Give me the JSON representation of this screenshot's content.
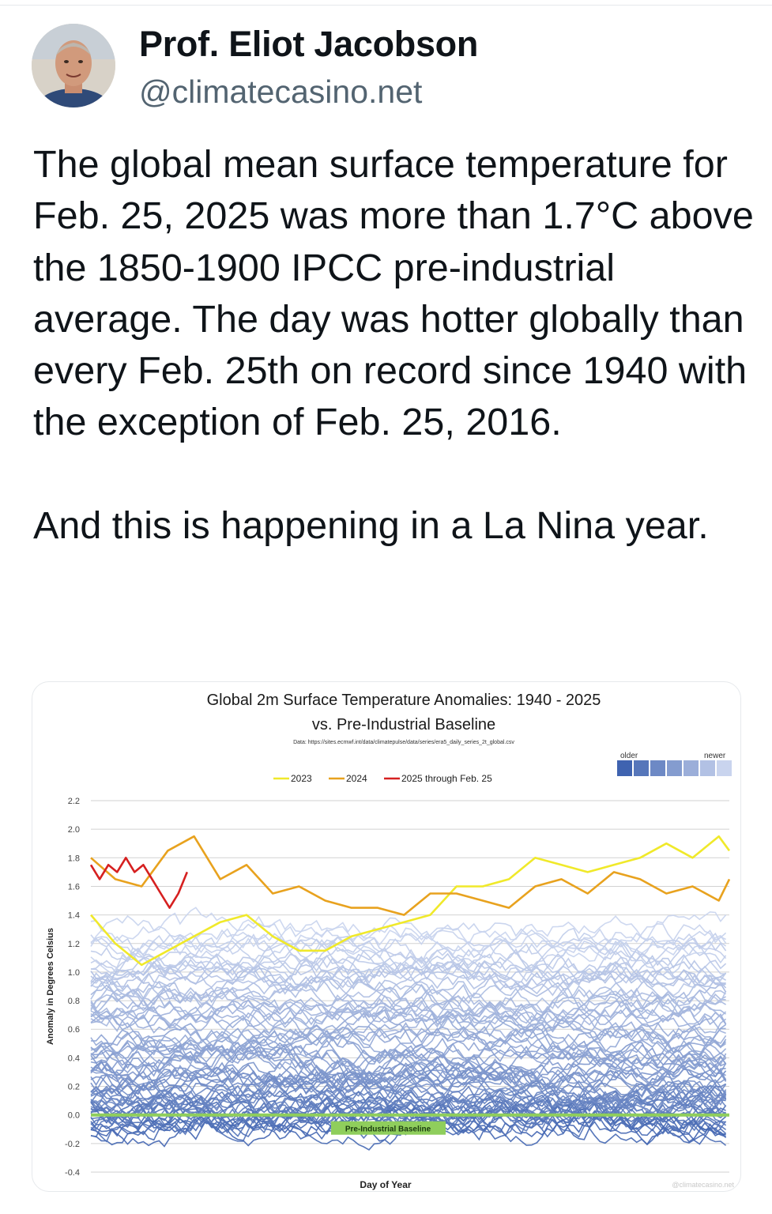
{
  "post": {
    "author_name": "Prof. Eliot Jacobson",
    "handle": "@climatecasino.net",
    "text": "The global mean surface temperature for Feb. 25, 2025 was more than 1.7°C above the 1850-1900 IPCC pre-industrial average. The day was hotter globally than every Feb. 25th on record since 1940 with the exception of Feb. 25, 2016.\n\nAnd this is happening in a La Nina year."
  },
  "colors": {
    "y2023": "#f0e92a",
    "y2024": "#e8a21e",
    "y2025": "#d62020",
    "older": "#3f63b0",
    "newer": "#c9d4ee",
    "baseline": "#8fce5c"
  },
  "chart_data": {
    "type": "line",
    "title": "Global 2m Surface Temperature Anomalies: 1940 - 2025",
    "subtitle": "vs. Pre-Industrial Baseline",
    "source": "Data: https://sites.ecmwf.int/data/climatepulse/data/series/era5_daily_series_2t_global.csv",
    "xlabel": "Day of Year",
    "ylabel": "Anomaly in Degrees Celsius",
    "ylim": [
      -0.4,
      2.2
    ],
    "xlim": [
      1,
      366
    ],
    "yticks": [
      "2.2",
      "2.0",
      "1.8",
      "1.6",
      "1.4",
      "1.2",
      "1.0",
      "0.8",
      "0.6",
      "0.4",
      "0.2",
      "0.0",
      "-0.2",
      "-0.4"
    ],
    "grid": true,
    "legend_placement": "top-center",
    "gradient_legend": {
      "older_label": "older",
      "newer_label": "newer"
    },
    "baseline_label": "Pre-Industrial Baseline",
    "watermark": "@climatecasino.net",
    "series": [
      {
        "name": "2023",
        "x": [
          1,
          15,
          30,
          45,
          60,
          75,
          90,
          105,
          120,
          135,
          150,
          165,
          180,
          195,
          210,
          225,
          240,
          255,
          270,
          285,
          300,
          315,
          330,
          345,
          360,
          366
        ],
        "values": [
          1.4,
          1.2,
          1.05,
          1.15,
          1.25,
          1.35,
          1.4,
          1.25,
          1.15,
          1.15,
          1.25,
          1.3,
          1.35,
          1.4,
          1.6,
          1.6,
          1.65,
          1.8,
          1.75,
          1.7,
          1.75,
          1.8,
          1.9,
          1.8,
          1.95,
          1.85
        ]
      },
      {
        "name": "2024",
        "x": [
          1,
          15,
          30,
          45,
          60,
          75,
          90,
          105,
          120,
          135,
          150,
          165,
          180,
          195,
          210,
          225,
          240,
          255,
          270,
          285,
          300,
          315,
          330,
          345,
          360,
          366
        ],
        "values": [
          1.8,
          1.65,
          1.6,
          1.85,
          1.95,
          1.65,
          1.75,
          1.55,
          1.6,
          1.5,
          1.45,
          1.45,
          1.4,
          1.55,
          1.55,
          1.5,
          1.45,
          1.6,
          1.65,
          1.55,
          1.7,
          1.65,
          1.55,
          1.6,
          1.5,
          1.65
        ]
      },
      {
        "name": "2025 through Feb. 25",
        "x": [
          1,
          6,
          11,
          16,
          21,
          26,
          31,
          36,
          41,
          46,
          51,
          56
        ],
        "values": [
          1.75,
          1.65,
          1.75,
          1.7,
          1.8,
          1.7,
          1.75,
          1.65,
          1.55,
          1.45,
          1.55,
          1.7
        ]
      }
    ]
  }
}
